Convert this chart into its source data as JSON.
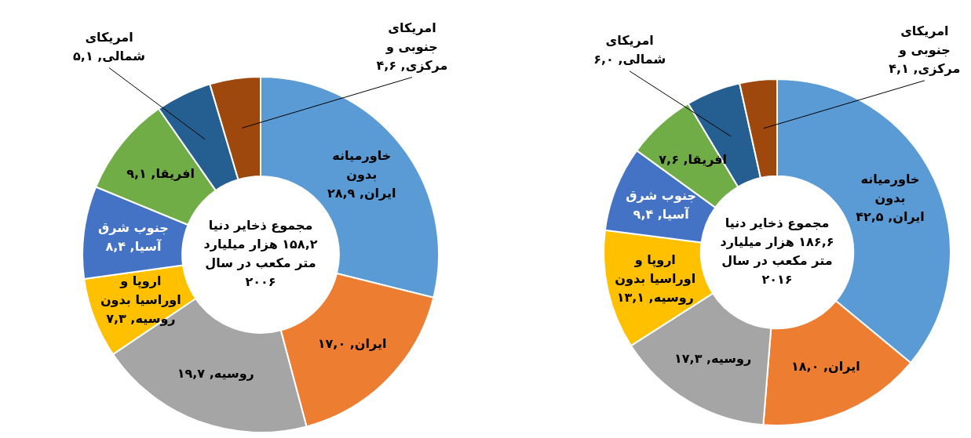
{
  "chart_data": [
    {
      "type": "donut",
      "categories": [
        "خاورمیانه بدون ایران",
        "ایران",
        "روسیه",
        "اروپا و اوراسیا بدون روسیه",
        "جنوب شرق آسیا",
        "افریقا",
        "امریکای شمالی",
        "امریکای جنوبی و مرکزی"
      ],
      "values": [
        28.9,
        17.0,
        19.7,
        7.3,
        8.4,
        9.1,
        5.1,
        4.6
      ],
      "value_labels": [
        "۲۸,۹",
        "۱۷,۰",
        "۱۹,۷",
        "۷,۳",
        "۸,۴",
        "۹,۱",
        "۵,۱",
        "۴,۶"
      ],
      "colors": [
        "#5b9bd5",
        "#ed7d31",
        "#a5a5a5",
        "#ffc000",
        "#4472c4",
        "#70ad47",
        "#255e91",
        "#9e480e"
      ],
      "annotations": [
        "مجموع ذخایر دنیا ۱۵۸,۲ هزار میلیارد متر مکعب در سال ۲۰۰۶"
      ]
    },
    {
      "type": "donut",
      "categories": [
        "خاورمیانه بدون ایران",
        "ایران",
        "روسیه",
        "اروپا و اوراسیا بدون روسیه",
        "جنوب شرق آسیا",
        "افریقا",
        "امریکای شمالی",
        "امریکای جنوبی و مرکزی"
      ],
      "values": [
        42.5,
        18.0,
        17.3,
        13.1,
        9.4,
        7.6,
        6.0,
        4.1
      ],
      "value_labels": [
        "۴۲,۵",
        "۱۸,۰",
        "۱۷,۳",
        "۱۳,۱",
        "۹,۴",
        "۷,۶",
        "۶,۰",
        "۴,۱"
      ],
      "colors": [
        "#5b9bd5",
        "#ed7d31",
        "#a5a5a5",
        "#ffc000",
        "#4472c4",
        "#70ad47",
        "#255e91",
        "#9e480e"
      ],
      "annotations": [
        "مجموع ذخایر دنیا ۱۸۶,۶ هزار میلیارد متر مکعب در سال ۲۰۱۶"
      ]
    }
  ]
}
